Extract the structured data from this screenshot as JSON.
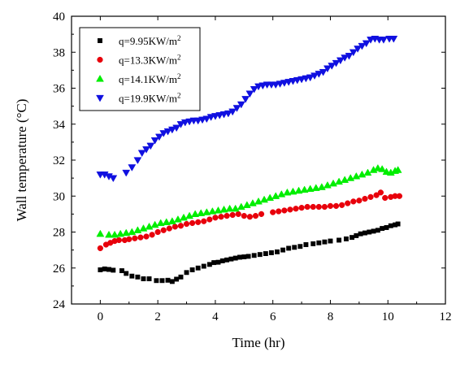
{
  "chart_data": {
    "type": "scatter",
    "title": "",
    "xlabel": "Time (hr)",
    "ylabel": "Wall temperature (°C)",
    "xlim": [
      -1,
      12
    ],
    "ylim": [
      24,
      40
    ],
    "xticks": [
      0,
      2,
      4,
      6,
      8,
      10,
      12
    ],
    "yticks": [
      24,
      26,
      28,
      30,
      32,
      34,
      36,
      38,
      40
    ],
    "grid": false,
    "legend_position": "top-left",
    "series": [
      {
        "name": "q=9.95KW/m2",
        "color": "#000000",
        "marker": "square",
        "points": [
          [
            0,
            25.9
          ],
          [
            0.15,
            25.95
          ],
          [
            0.3,
            25.92
          ],
          [
            0.45,
            25.88
          ],
          [
            0.75,
            25.85
          ],
          [
            0.9,
            25.7
          ],
          [
            1.1,
            25.55
          ],
          [
            1.3,
            25.5
          ],
          [
            1.5,
            25.4
          ],
          [
            1.7,
            25.4
          ],
          [
            1.95,
            25.3
          ],
          [
            2.15,
            25.3
          ],
          [
            2.35,
            25.32
          ],
          [
            2.5,
            25.25
          ],
          [
            2.65,
            25.38
          ],
          [
            2.8,
            25.5
          ],
          [
            3.0,
            25.75
          ],
          [
            3.2,
            25.9
          ],
          [
            3.4,
            26.0
          ],
          [
            3.6,
            26.1
          ],
          [
            3.8,
            26.2
          ],
          [
            3.95,
            26.3
          ],
          [
            4.1,
            26.32
          ],
          [
            4.25,
            26.4
          ],
          [
            4.4,
            26.45
          ],
          [
            4.55,
            26.5
          ],
          [
            4.7,
            26.55
          ],
          [
            4.85,
            26.6
          ],
          [
            5.0,
            26.62
          ],
          [
            5.15,
            26.65
          ],
          [
            5.35,
            26.7
          ],
          [
            5.55,
            26.75
          ],
          [
            5.75,
            26.8
          ],
          [
            5.95,
            26.85
          ],
          [
            6.15,
            26.9
          ],
          [
            6.35,
            27.0
          ],
          [
            6.55,
            27.1
          ],
          [
            6.75,
            27.15
          ],
          [
            6.95,
            27.2
          ],
          [
            7.15,
            27.3
          ],
          [
            7.4,
            27.35
          ],
          [
            7.6,
            27.4
          ],
          [
            7.8,
            27.45
          ],
          [
            8.0,
            27.5
          ],
          [
            8.3,
            27.55
          ],
          [
            8.55,
            27.62
          ],
          [
            8.75,
            27.7
          ],
          [
            8.9,
            27.8
          ],
          [
            9.05,
            27.9
          ],
          [
            9.2,
            27.95
          ],
          [
            9.35,
            28.0
          ],
          [
            9.5,
            28.05
          ],
          [
            9.65,
            28.1
          ],
          [
            9.8,
            28.2
          ],
          [
            9.95,
            28.25
          ],
          [
            10.1,
            28.35
          ],
          [
            10.25,
            28.4
          ],
          [
            10.35,
            28.45
          ]
        ]
      },
      {
        "name": "q=13.3KW/m2",
        "color": "#e8000b",
        "marker": "circle",
        "points": [
          [
            0,
            27.1
          ],
          [
            0.2,
            27.3
          ],
          [
            0.35,
            27.4
          ],
          [
            0.5,
            27.5
          ],
          [
            0.65,
            27.55
          ],
          [
            0.85,
            27.55
          ],
          [
            1.0,
            27.6
          ],
          [
            1.2,
            27.65
          ],
          [
            1.4,
            27.7
          ],
          [
            1.6,
            27.75
          ],
          [
            1.8,
            27.85
          ],
          [
            2.0,
            28.0
          ],
          [
            2.2,
            28.1
          ],
          [
            2.4,
            28.2
          ],
          [
            2.6,
            28.3
          ],
          [
            2.8,
            28.35
          ],
          [
            3.0,
            28.45
          ],
          [
            3.2,
            28.5
          ],
          [
            3.4,
            28.55
          ],
          [
            3.6,
            28.6
          ],
          [
            3.8,
            28.7
          ],
          [
            4.0,
            28.8
          ],
          [
            4.2,
            28.85
          ],
          [
            4.4,
            28.9
          ],
          [
            4.6,
            28.95
          ],
          [
            4.8,
            29.0
          ],
          [
            5.0,
            28.9
          ],
          [
            5.2,
            28.85
          ],
          [
            5.4,
            28.9
          ],
          [
            5.6,
            29.0
          ],
          [
            6.0,
            29.1
          ],
          [
            6.2,
            29.15
          ],
          [
            6.4,
            29.2
          ],
          [
            6.6,
            29.25
          ],
          [
            6.8,
            29.3
          ],
          [
            7.0,
            29.35
          ],
          [
            7.2,
            29.4
          ],
          [
            7.4,
            29.4
          ],
          [
            7.6,
            29.4
          ],
          [
            7.8,
            29.4
          ],
          [
            8.0,
            29.45
          ],
          [
            8.2,
            29.45
          ],
          [
            8.4,
            29.5
          ],
          [
            8.6,
            29.6
          ],
          [
            8.8,
            29.7
          ],
          [
            9.0,
            29.75
          ],
          [
            9.2,
            29.85
          ],
          [
            9.4,
            29.95
          ],
          [
            9.6,
            30.05
          ],
          [
            9.75,
            30.2
          ],
          [
            9.9,
            29.9
          ],
          [
            10.1,
            29.95
          ],
          [
            10.25,
            30.0
          ],
          [
            10.4,
            30.0
          ]
        ]
      },
      {
        "name": "q=14.1KW/m2",
        "color": "#00ee00",
        "marker": "triangle-up",
        "points": [
          [
            0,
            27.9
          ],
          [
            0.3,
            27.85
          ],
          [
            0.5,
            27.85
          ],
          [
            0.7,
            27.9
          ],
          [
            0.9,
            27.95
          ],
          [
            1.1,
            28.0
          ],
          [
            1.3,
            28.1
          ],
          [
            1.5,
            28.2
          ],
          [
            1.7,
            28.3
          ],
          [
            1.9,
            28.4
          ],
          [
            2.1,
            28.5
          ],
          [
            2.3,
            28.55
          ],
          [
            2.5,
            28.6
          ],
          [
            2.7,
            28.7
          ],
          [
            2.9,
            28.8
          ],
          [
            3.1,
            28.9
          ],
          [
            3.3,
            29.0
          ],
          [
            3.5,
            29.05
          ],
          [
            3.7,
            29.1
          ],
          [
            3.9,
            29.15
          ],
          [
            4.1,
            29.2
          ],
          [
            4.3,
            29.25
          ],
          [
            4.5,
            29.3
          ],
          [
            4.7,
            29.3
          ],
          [
            4.9,
            29.4
          ],
          [
            5.1,
            29.5
          ],
          [
            5.3,
            29.6
          ],
          [
            5.5,
            29.7
          ],
          [
            5.7,
            29.8
          ],
          [
            5.9,
            29.9
          ],
          [
            6.1,
            30.0
          ],
          [
            6.3,
            30.1
          ],
          [
            6.5,
            30.2
          ],
          [
            6.7,
            30.25
          ],
          [
            6.9,
            30.3
          ],
          [
            7.1,
            30.35
          ],
          [
            7.3,
            30.4
          ],
          [
            7.5,
            30.45
          ],
          [
            7.7,
            30.5
          ],
          [
            7.9,
            30.6
          ],
          [
            8.1,
            30.7
          ],
          [
            8.3,
            30.8
          ],
          [
            8.5,
            30.9
          ],
          [
            8.7,
            31.0
          ],
          [
            8.9,
            31.1
          ],
          [
            9.1,
            31.2
          ],
          [
            9.3,
            31.3
          ],
          [
            9.5,
            31.45
          ],
          [
            9.65,
            31.55
          ],
          [
            9.8,
            31.5
          ],
          [
            9.95,
            31.35
          ],
          [
            10.1,
            31.3
          ],
          [
            10.25,
            31.4
          ],
          [
            10.35,
            31.45
          ]
        ]
      },
      {
        "name": "q=19.9KW/m2",
        "color": "#1010e0",
        "marker": "triangle-down",
        "points": [
          [
            0,
            31.2
          ],
          [
            0.15,
            31.2
          ],
          [
            0.3,
            31.1
          ],
          [
            0.45,
            31.0
          ],
          [
            0.9,
            31.3
          ],
          [
            1.1,
            31.6
          ],
          [
            1.3,
            32.0
          ],
          [
            1.45,
            32.4
          ],
          [
            1.6,
            32.6
          ],
          [
            1.75,
            32.8
          ],
          [
            1.9,
            33.1
          ],
          [
            2.05,
            33.3
          ],
          [
            2.2,
            33.5
          ],
          [
            2.35,
            33.6
          ],
          [
            2.5,
            33.7
          ],
          [
            2.65,
            33.8
          ],
          [
            2.8,
            34.0
          ],
          [
            2.95,
            34.1
          ],
          [
            3.1,
            34.15
          ],
          [
            3.25,
            34.2
          ],
          [
            3.4,
            34.2
          ],
          [
            3.55,
            34.25
          ],
          [
            3.7,
            34.3
          ],
          [
            3.85,
            34.4
          ],
          [
            4.0,
            34.45
          ],
          [
            4.15,
            34.5
          ],
          [
            4.3,
            34.55
          ],
          [
            4.45,
            34.6
          ],
          [
            4.6,
            34.7
          ],
          [
            4.75,
            34.9
          ],
          [
            4.9,
            35.1
          ],
          [
            5.05,
            35.4
          ],
          [
            5.2,
            35.7
          ],
          [
            5.35,
            35.95
          ],
          [
            5.5,
            36.1
          ],
          [
            5.65,
            36.15
          ],
          [
            5.8,
            36.2
          ],
          [
            5.95,
            36.2
          ],
          [
            6.1,
            36.2
          ],
          [
            6.25,
            36.25
          ],
          [
            6.4,
            36.3
          ],
          [
            6.55,
            36.35
          ],
          [
            6.7,
            36.4
          ],
          [
            6.85,
            36.45
          ],
          [
            7.0,
            36.5
          ],
          [
            7.15,
            36.55
          ],
          [
            7.3,
            36.6
          ],
          [
            7.45,
            36.7
          ],
          [
            7.6,
            36.8
          ],
          [
            7.75,
            36.9
          ],
          [
            7.9,
            37.1
          ],
          [
            8.05,
            37.25
          ],
          [
            8.2,
            37.4
          ],
          [
            8.35,
            37.55
          ],
          [
            8.5,
            37.7
          ],
          [
            8.65,
            37.8
          ],
          [
            8.8,
            38.0
          ],
          [
            8.95,
            38.2
          ],
          [
            9.1,
            38.35
          ],
          [
            9.25,
            38.5
          ],
          [
            9.4,
            38.7
          ],
          [
            9.55,
            38.75
          ],
          [
            9.7,
            38.7
          ],
          [
            9.85,
            38.7
          ],
          [
            10.05,
            38.75
          ],
          [
            10.2,
            38.75
          ]
        ]
      }
    ]
  }
}
